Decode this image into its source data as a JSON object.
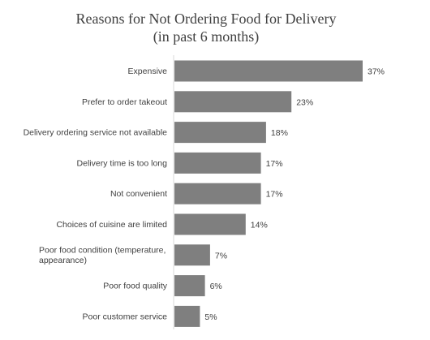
{
  "chart_data": {
    "type": "bar",
    "orientation": "horizontal",
    "title": "Reasons for Not Ordering Food for Delivery",
    "subtitle": "(in past 6 months)",
    "categories": [
      "Expensive",
      "Prefer to order takeout",
      "Delivery ordering service not available",
      "Delivery time is too long",
      "Not convenient",
      "Choices of cuisine are limited",
      "Poor food condition (temperature, appearance)",
      "Poor food quality",
      "Poor customer service"
    ],
    "values": [
      37,
      23,
      18,
      17,
      17,
      14,
      7,
      6,
      5
    ],
    "value_labels": [
      "37%",
      "23%",
      "18%",
      "17%",
      "17%",
      "14%",
      "7%",
      "6%",
      "5%"
    ],
    "unit": "%",
    "xlim": [
      0,
      40
    ],
    "grid": false,
    "legend": "none",
    "bar_color": "#7f7f7f"
  }
}
